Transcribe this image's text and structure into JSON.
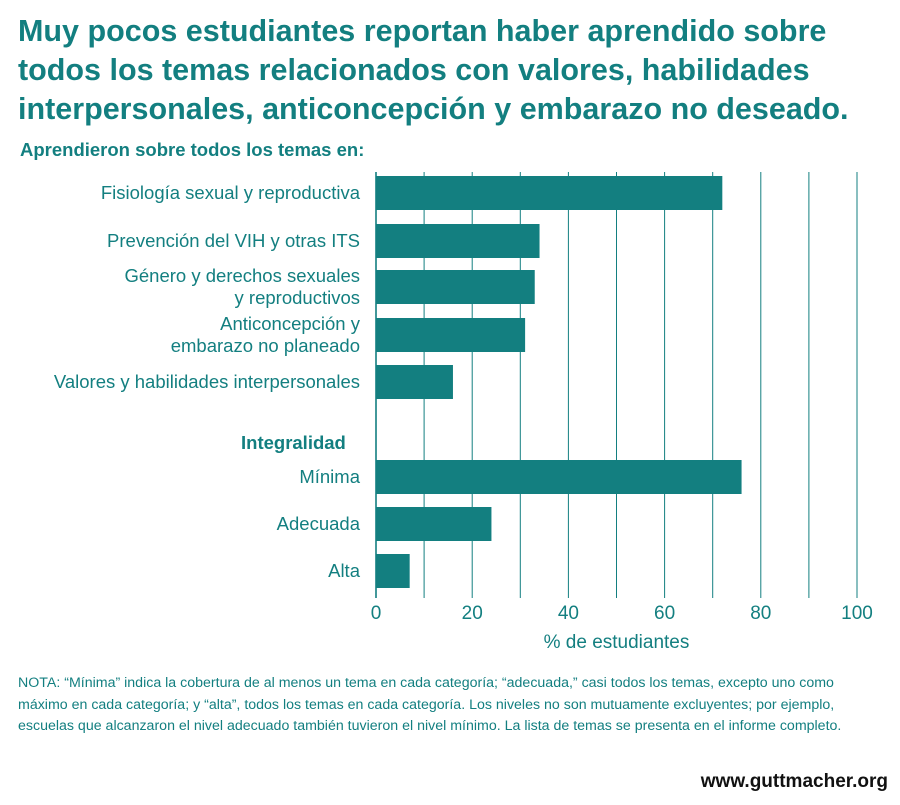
{
  "title": "Muy pocos estudiantes reportan haber aprendido sobre todos los temas relacionados con valores, habilidades interpersonales, anticoncepción y embarazo no deseado.",
  "note": "NOTA: “Mínima” indica la cobertura de al menos un tema en cada categoría; “adecuada,” casi todos los temas, excepto uno como máximo en cada categoría; y “alta”, todos los temas en cada categoría. Los niveles no son mutuamente excluyentes; por ejemplo, escuelas que alcanzaron el nivel adecuado también tuvieron el nivel mínimo. La lista de temas se presenta en el informe completo.",
  "website": "www.guttmacher.org",
  "colors": {
    "accent": "#137f80",
    "bar": "#137f80",
    "grid": "#137f80"
  },
  "chart_data": {
    "type": "bar",
    "orientation": "horizontal",
    "xlabel": "% de estudiantes",
    "xlim": [
      0,
      100
    ],
    "ticks": [
      "0",
      "20",
      "40",
      "60",
      "80",
      "100"
    ],
    "grid": true,
    "groups": [
      {
        "heading": "Aprendieron sobre todos los temas en:",
        "bars": [
          {
            "label": [
              "Fisiología sexual y reproductiva"
            ],
            "value": 72
          },
          {
            "label": [
              "Prevención del VIH y otras ITS"
            ],
            "value": 34
          },
          {
            "label": [
              "Género y derechos sexuales",
              "y reproductivos"
            ],
            "value": 33
          },
          {
            "label": [
              "Anticoncepción y",
              "embarazo no planeado"
            ],
            "value": 31
          },
          {
            "label": [
              "Valores y habilidades interpersonales"
            ],
            "value": 16
          }
        ]
      },
      {
        "heading": "Integralidad",
        "bars": [
          {
            "label": [
              "Mínima"
            ],
            "value": 76
          },
          {
            "label": [
              "Adecuada"
            ],
            "value": 24
          },
          {
            "label": [
              "Alta"
            ],
            "value": 7
          }
        ]
      }
    ]
  }
}
